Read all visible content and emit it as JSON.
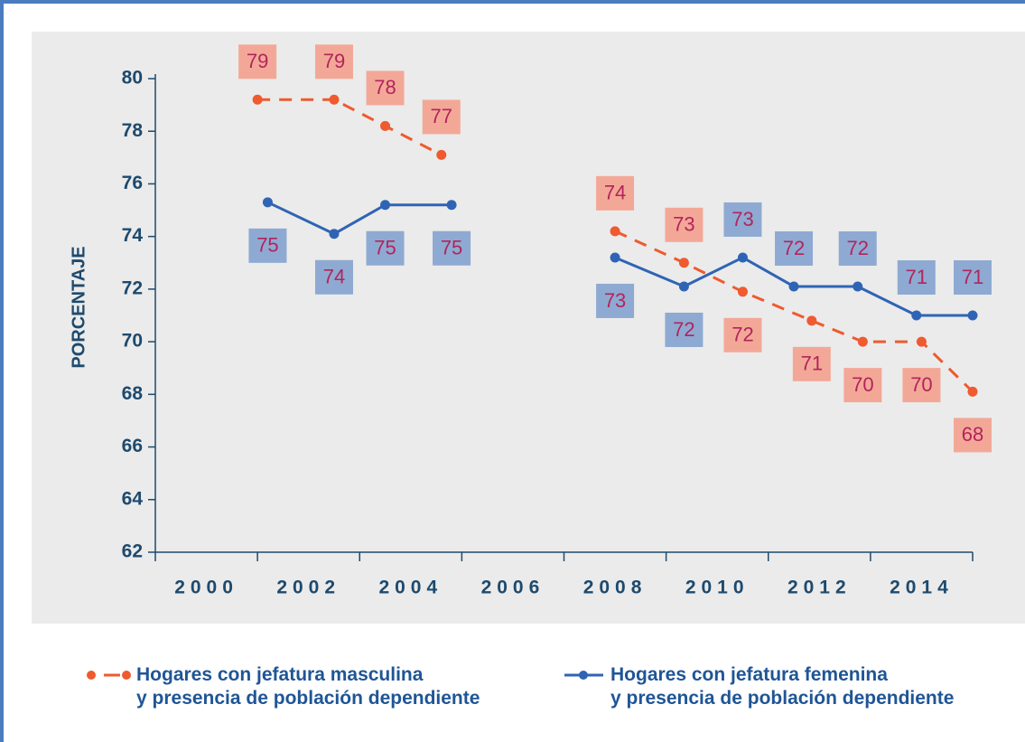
{
  "chart_data": {
    "type": "line",
    "ylabel": "PORCENTAJE",
    "xlim": [
      1999,
      2015
    ],
    "xticks": [
      2000,
      2002,
      2004,
      2006,
      2008,
      2010,
      2012,
      2014
    ],
    "ylim": [
      62,
      80
    ],
    "yticks": [
      62,
      64,
      66,
      68,
      70,
      72,
      74,
      76,
      78,
      80
    ],
    "series": [
      {
        "name": "Hogares con jefatura masculina\ny presencia de población dependiente",
        "color": "#ef5a2f",
        "dashed": true,
        "x": [
          2001,
          2002.5,
          2003.5,
          2004.6,
          2006,
          2008,
          2009.35,
          2010.5,
          2011.85,
          2012.85,
          2014,
          2015
        ],
        "values": [
          79.2,
          79.2,
          78.2,
          77.1,
          null,
          74.2,
          73.0,
          71.9,
          70.8,
          70.0,
          70.0,
          68.1
        ],
        "value_labels": [
          "79",
          "79",
          "78",
          "77",
          null,
          "74",
          "73",
          "72",
          "71",
          "70",
          "70",
          "68"
        ]
      },
      {
        "name": "Hogares con jefatura femenina\ny presencia de población dependiente",
        "color": "#2f64b5",
        "dashed": false,
        "x": [
          2001.2,
          2002.5,
          2003.5,
          2004.8,
          2006,
          2008,
          2009.35,
          2010.5,
          2011.5,
          2012.75,
          2013.9,
          2015
        ],
        "values": [
          75.3,
          74.1,
          75.2,
          75.2,
          null,
          73.2,
          72.1,
          73.2,
          72.1,
          72.1,
          71.0,
          71.0
        ],
        "value_labels": [
          "75",
          "74",
          "75",
          "75",
          null,
          "73",
          "72",
          "73",
          "72",
          "72",
          "71",
          "71"
        ]
      }
    ]
  }
}
